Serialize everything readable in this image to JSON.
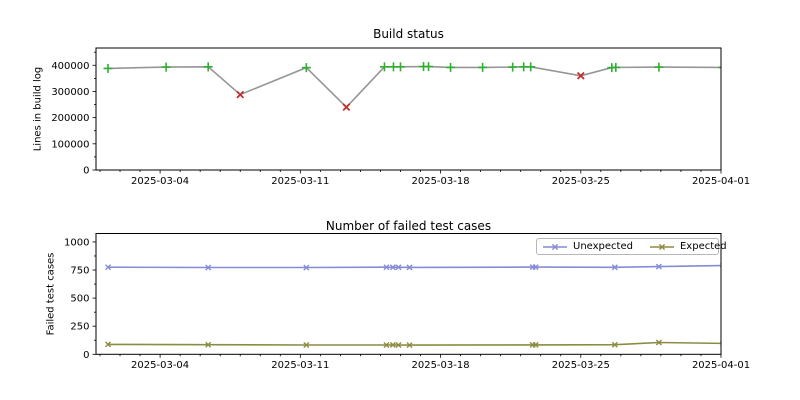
{
  "figure": {
    "background": "#ffffff"
  },
  "chart_data": [
    {
      "type": "line",
      "title": "Build status",
      "ylabel": "Lines in build log",
      "x_start_date": "2025-03-01",
      "xlim_days": [
        -0.2,
        31.0
      ],
      "ylim": [
        0,
        466000
      ],
      "x_major_ticks": [
        {
          "day": 3,
          "label": "2025-03-04"
        },
        {
          "day": 10,
          "label": "2025-03-11"
        },
        {
          "day": 17,
          "label": "2025-03-18"
        },
        {
          "day": 24,
          "label": "2025-03-25"
        },
        {
          "day": 31,
          "label": "2025-04-01"
        }
      ],
      "x_minor_step_days": 1,
      "y_major_ticks": [
        {
          "value": 0,
          "label": "0"
        },
        {
          "value": 100000,
          "label": "100000"
        },
        {
          "value": 200000,
          "label": "200000"
        },
        {
          "value": 300000,
          "label": "300000"
        },
        {
          "value": 400000,
          "label": "400000"
        }
      ],
      "y_minor_step": 50000,
      "line_color": "#969696",
      "markers": {
        "ok": {
          "glyph": "plus",
          "color": "#2fae2f",
          "size": 9
        },
        "fail": {
          "glyph": "x",
          "color": "#c03030",
          "size": 9
        }
      },
      "points": [
        {
          "date": "2025-03-01",
          "day": 0.4,
          "value": 388000,
          "status": "ok"
        },
        {
          "date": "2025-03-04",
          "day": 3.3,
          "value": 393000,
          "status": "ok"
        },
        {
          "date": "2025-03-06",
          "day": 5.4,
          "value": 394000,
          "status": "ok"
        },
        {
          "date": "2025-03-08",
          "day": 7.0,
          "value": 288000,
          "status": "fail"
        },
        {
          "date": "2025-03-11",
          "day": 10.3,
          "value": 391000,
          "status": "ok"
        },
        {
          "date": "2025-03-13",
          "day": 12.3,
          "value": 240000,
          "status": "fail"
        },
        {
          "date": "2025-03-15",
          "day": 14.2,
          "value": 394000,
          "status": "ok"
        },
        {
          "date": "2025-03-15",
          "day": 14.65,
          "value": 394000,
          "status": "ok"
        },
        {
          "date": "2025-03-16",
          "day": 15.0,
          "value": 394000,
          "status": "ok"
        },
        {
          "date": "2025-03-17",
          "day": 16.15,
          "value": 395000,
          "status": "ok"
        },
        {
          "date": "2025-03-17",
          "day": 16.4,
          "value": 395000,
          "status": "ok"
        },
        {
          "date": "2025-03-18",
          "day": 17.5,
          "value": 392000,
          "status": "ok"
        },
        {
          "date": "2025-03-20",
          "day": 19.1,
          "value": 392000,
          "status": "ok"
        },
        {
          "date": "2025-03-21",
          "day": 20.6,
          "value": 393000,
          "status": "ok"
        },
        {
          "date": "2025-03-22",
          "day": 21.15,
          "value": 394000,
          "status": "ok"
        },
        {
          "date": "2025-03-22",
          "day": 21.5,
          "value": 394000,
          "status": "ok"
        },
        {
          "date": "2025-03-25",
          "day": 24.0,
          "value": 360000,
          "status": "fail"
        },
        {
          "date": "2025-03-26",
          "day": 25.55,
          "value": 391000,
          "status": "ok"
        },
        {
          "date": "2025-03-26",
          "day": 25.75,
          "value": 392000,
          "status": "ok"
        },
        {
          "date": "2025-03-29",
          "day": 27.9,
          "value": 393000,
          "status": "ok"
        },
        {
          "date": "2025-04-01",
          "day": 31.1,
          "value": 392000,
          "status": "ok"
        }
      ]
    },
    {
      "type": "line",
      "title": "Number of failed test cases",
      "ylabel": "Failed test cases",
      "x_start_date": "2025-03-01",
      "xlim_days": [
        -0.2,
        31.0
      ],
      "ylim": [
        0,
        1075
      ],
      "x_major_ticks": [
        {
          "day": 3,
          "label": "2025-03-04"
        },
        {
          "day": 10,
          "label": "2025-03-11"
        },
        {
          "day": 17,
          "label": "2025-03-18"
        },
        {
          "day": 24,
          "label": "2025-03-25"
        },
        {
          "day": 31,
          "label": "2025-04-01"
        }
      ],
      "x_minor_step_days": 1,
      "y_major_ticks": [
        {
          "value": 0,
          "label": "0"
        },
        {
          "value": 250,
          "label": "250"
        },
        {
          "value": 500,
          "label": "500"
        },
        {
          "value": 750,
          "label": "750"
        },
        {
          "value": 1000,
          "label": "1000"
        }
      ],
      "y_minor_step": 125,
      "legend": {
        "position": "upper right"
      },
      "series": [
        {
          "name": "Unexpected",
          "color": "#868bd8",
          "marker": {
            "glyph": "x",
            "size": 7
          },
          "points": [
            {
              "date": "2025-03-01",
              "day": 0.4,
              "value": 775
            },
            {
              "date": "2025-03-06",
              "day": 5.4,
              "value": 772
            },
            {
              "date": "2025-03-11",
              "day": 10.3,
              "value": 772
            },
            {
              "date": "2025-03-15",
              "day": 14.3,
              "value": 775
            },
            {
              "date": "2025-03-15",
              "day": 14.62,
              "value": 774
            },
            {
              "date": "2025-03-16",
              "day": 14.9,
              "value": 775
            },
            {
              "date": "2025-03-16",
              "day": 15.45,
              "value": 773
            },
            {
              "date": "2025-03-22",
              "day": 21.6,
              "value": 776
            },
            {
              "date": "2025-03-22",
              "day": 21.75,
              "value": 776
            },
            {
              "date": "2025-03-26",
              "day": 25.7,
              "value": 774
            },
            {
              "date": "2025-03-29",
              "day": 27.9,
              "value": 780
            },
            {
              "date": "2025-04-01",
              "day": 31.1,
              "value": 790
            }
          ]
        },
        {
          "name": "Expected",
          "color": "#8c8c41",
          "marker": {
            "glyph": "x",
            "size": 7
          },
          "points": [
            {
              "date": "2025-03-01",
              "day": 0.4,
              "value": 88
            },
            {
              "date": "2025-03-06",
              "day": 5.4,
              "value": 85
            },
            {
              "date": "2025-03-11",
              "day": 10.3,
              "value": 83
            },
            {
              "date": "2025-03-15",
              "day": 14.3,
              "value": 83
            },
            {
              "date": "2025-03-15",
              "day": 14.62,
              "value": 84
            },
            {
              "date": "2025-03-16",
              "day": 14.9,
              "value": 83
            },
            {
              "date": "2025-03-16",
              "day": 15.45,
              "value": 82
            },
            {
              "date": "2025-03-22",
              "day": 21.6,
              "value": 84
            },
            {
              "date": "2025-03-22",
              "day": 21.75,
              "value": 84
            },
            {
              "date": "2025-03-26",
              "day": 25.7,
              "value": 85
            },
            {
              "date": "2025-03-29",
              "day": 27.9,
              "value": 105
            },
            {
              "date": "2025-04-01",
              "day": 31.1,
              "value": 97
            }
          ]
        }
      ]
    }
  ]
}
